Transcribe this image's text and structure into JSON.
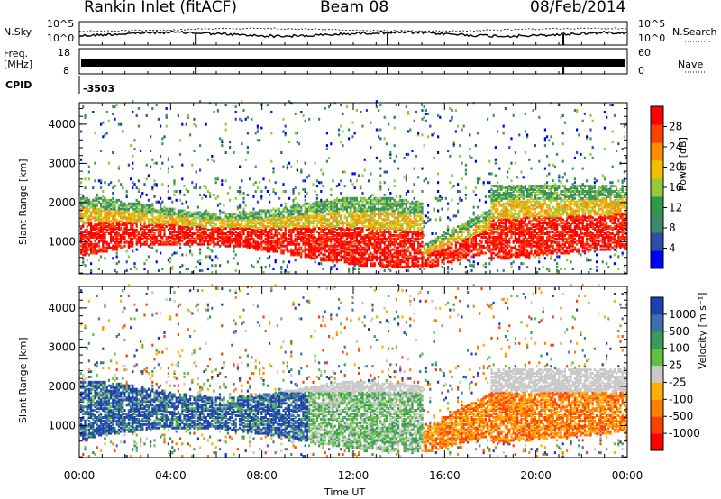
{
  "header": {
    "station": "Rankin Inlet (fitACF)",
    "beam": "Beam 08",
    "date": "08/Feb/2014"
  },
  "strips": {
    "nsky_label": "N.Sky",
    "nsearch_label": "N.Search",
    "noise_ticks": [
      "10^5",
      "10^0"
    ],
    "freq_label_line1": "Freq.",
    "freq_label_line2": "[MHz]",
    "freq_ticks": [
      "18",
      "8"
    ],
    "nave_label": "Nave",
    "nave_ticks": [
      "60",
      "0"
    ],
    "cpid_label": "CPID",
    "cpid_value": "-3503"
  },
  "colors": {
    "power_scale": [
      "#0000ff",
      "#2c4fa8",
      "#3c8a6e",
      "#2e9a4a",
      "#96c83c",
      "#f0c000",
      "#ff8c00",
      "#ff4000",
      "#ff0000"
    ],
    "velocity_scale": [
      "#2040b0",
      "#3a70b0",
      "#3a9a5a",
      "#60c040",
      "#c8c8c8",
      "#ffb000",
      "#ff8000",
      "#ff4000",
      "#ff0000"
    ]
  },
  "chart_data": [
    {
      "type": "heatmap",
      "panel": "power",
      "ylabel": "Slant Range [km]",
      "ylim": [
        180,
        4550
      ],
      "y_ticks": [
        1000,
        2000,
        3000,
        4000
      ],
      "x_ticks": [
        "00:00",
        "04:00",
        "08:00",
        "12:00",
        "16:00",
        "20:00",
        "00:00"
      ],
      "xlim_hours": [
        0,
        24
      ],
      "colorbar_label": "Power [dB]",
      "colorbar_ticks": [
        "28",
        "24",
        "20",
        "16",
        "12",
        "8",
        "4"
      ]
    },
    {
      "type": "heatmap",
      "panel": "velocity",
      "ylabel": "Slant Range [km]",
      "xlabel": "Time UT",
      "ylim": [
        180,
        4550
      ],
      "y_ticks": [
        1000,
        2000,
        3000,
        4000
      ],
      "x_ticks": [
        "00:00",
        "04:00",
        "08:00",
        "12:00",
        "16:00",
        "20:00",
        "00:00"
      ],
      "xlim_hours": [
        0,
        24
      ],
      "colorbar_label": "Velocity [m s⁻¹]",
      "colorbar_ticks": [
        "1000",
        "500",
        "100",
        "25",
        "-25",
        "-100",
        "-500",
        "-1000"
      ]
    }
  ]
}
